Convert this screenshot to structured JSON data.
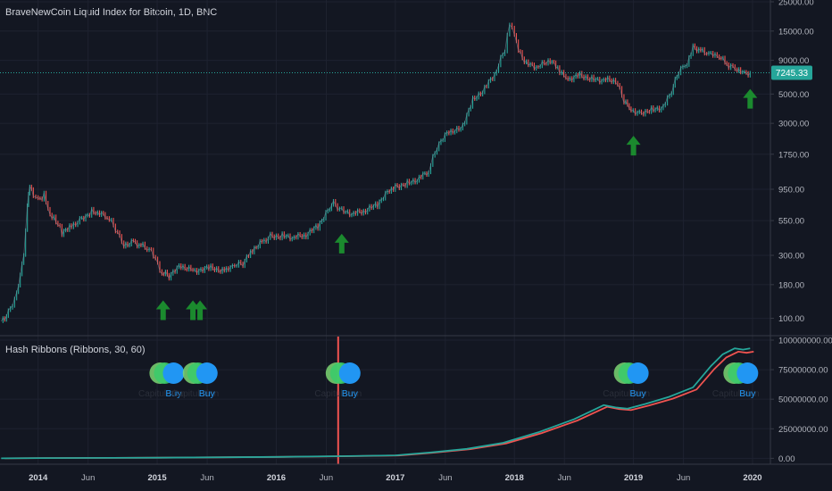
{
  "price_pane": {
    "title": "BraveNewCoin Liquid Index for Bitcoin, 1D, BNC",
    "last_price_label": "7245.33",
    "last_price": 7245.33,
    "y_ticks": [
      {
        "label": "25000.00",
        "value": 25000
      },
      {
        "label": "15000.00",
        "value": 15000
      },
      {
        "label": "9000.00",
        "value": 9000
      },
      {
        "label": "5000.00",
        "value": 5000
      },
      {
        "label": "3000.00",
        "value": 3000
      },
      {
        "label": "1750.00",
        "value": 1750
      },
      {
        "label": "950.00",
        "value": 950
      },
      {
        "label": "550.00",
        "value": 550
      },
      {
        "label": "300.00",
        "value": 300
      },
      {
        "label": "180.00",
        "value": 180
      },
      {
        "label": "100.00",
        "value": 100
      }
    ],
    "arrows": [
      {
        "t": 2015.05,
        "price": 150
      },
      {
        "t": 2015.3,
        "price": 150
      },
      {
        "t": 2015.36,
        "price": 150
      },
      {
        "t": 2016.55,
        "price": 480
      },
      {
        "t": 2019.0,
        "price": 2650
      },
      {
        "t": 2019.98,
        "price": 6000
      }
    ]
  },
  "indicator_pane": {
    "title": "Hash Ribbons (Ribbons, 30, 60)",
    "y_ticks": [
      {
        "label": "100000000.00",
        "value": 100000000
      },
      {
        "label": "75000000.00",
        "value": 75000000
      },
      {
        "label": "50000000.00",
        "value": 50000000
      },
      {
        "label": "25000000.00",
        "value": 25000000
      },
      {
        "label": "0.00",
        "value": 0
      }
    ],
    "signals": [
      {
        "t": 2015.1,
        "caption": "Capitulation",
        "label": "Buy"
      },
      {
        "t": 2015.38,
        "caption": "Capitulation",
        "label": "Buy"
      },
      {
        "t": 2016.58,
        "caption": "Capitulation",
        "label": "Buy"
      },
      {
        "t": 2019.0,
        "caption": "Capitulation",
        "label": "Buy"
      },
      {
        "t": 2019.92,
        "caption": "Capitulation",
        "label": "Buy"
      }
    ],
    "halving_t": 2016.52
  },
  "x_axis": {
    "ticks": [
      {
        "label": "2014",
        "t": 2014.0,
        "bold": true
      },
      {
        "label": "Jun",
        "t": 2014.42,
        "bold": false
      },
      {
        "label": "2015",
        "t": 2015.0,
        "bold": true
      },
      {
        "label": "Jun",
        "t": 2015.42,
        "bold": false
      },
      {
        "label": "2016",
        "t": 2016.0,
        "bold": true
      },
      {
        "label": "Jun",
        "t": 2016.42,
        "bold": false
      },
      {
        "label": "2017",
        "t": 2017.0,
        "bold": true
      },
      {
        "label": "Jun",
        "t": 2017.42,
        "bold": false
      },
      {
        "label": "2018",
        "t": 2018.0,
        "bold": true
      },
      {
        "label": "Jun",
        "t": 2018.42,
        "bold": false
      },
      {
        "label": "2019",
        "t": 2019.0,
        "bold": true
      },
      {
        "label": "Jun",
        "t": 2019.42,
        "bold": false
      },
      {
        "label": "2020",
        "t": 2020.0,
        "bold": true
      }
    ]
  },
  "chart_data": {
    "type": "line",
    "title": "BraveNewCoin Liquid Index for Bitcoin, 1D, BNC",
    "log_scale": true,
    "ylim": [
      85,
      25000
    ],
    "series": [
      {
        "name": "BraveNewCoin Liquid Index for Bitcoin",
        "x": [
          2013.69,
          2013.75,
          2013.82,
          2013.88,
          2013.91,
          2013.93,
          2013.96,
          2014.0,
          2014.05,
          2014.1,
          2014.15,
          2014.2,
          2014.28,
          2014.35,
          2014.45,
          2014.5,
          2014.58,
          2014.65,
          2014.72,
          2014.8,
          2014.88,
          2014.95,
          2015.04,
          2015.1,
          2015.2,
          2015.3,
          2015.45,
          2015.58,
          2015.65,
          2015.72,
          2015.8,
          2015.88,
          2015.95,
          2016.05,
          2016.15,
          2016.25,
          2016.35,
          2016.45,
          2016.48,
          2016.55,
          2016.65,
          2016.75,
          2016.85,
          2016.95,
          2017.0,
          2017.1,
          2017.2,
          2017.28,
          2017.35,
          2017.45,
          2017.55,
          2017.65,
          2017.75,
          2017.85,
          2017.92,
          2017.96,
          2018.0,
          2018.05,
          2018.1,
          2018.2,
          2018.3,
          2018.38,
          2018.45,
          2018.55,
          2018.65,
          2018.75,
          2018.85,
          2018.92,
          2018.98,
          2019.05,
          2019.15,
          2019.25,
          2019.32,
          2019.38,
          2019.45,
          2019.5,
          2019.58,
          2019.65,
          2019.72,
          2019.8,
          2019.87,
          2019.93,
          2019.98
        ],
        "values": [
          95,
          110,
          150,
          300,
          750,
          1050,
          850,
          780,
          850,
          600,
          550,
          450,
          500,
          560,
          640,
          620,
          590,
          480,
          360,
          380,
          350,
          320,
          220,
          210,
          250,
          230,
          240,
          230,
          250,
          260,
          330,
          380,
          420,
          420,
          410,
          425,
          500,
          680,
          750,
          650,
          620,
          650,
          730,
          930,
          1000,
          1050,
          1150,
          1300,
          2000,
          2600,
          2700,
          4500,
          5500,
          7500,
          11000,
          17500,
          14000,
          10000,
          8500,
          8000,
          9000,
          7500,
          6500,
          7000,
          6500,
          6400,
          6300,
          4500,
          3800,
          3600,
          3800,
          4000,
          5200,
          7500,
          8500,
          11500,
          10500,
          10000,
          9500,
          8200,
          7700,
          7300,
          7245
        ]
      },
      {
        "name": "Hash Ribbons",
        "x": [
          2013.69,
          2014.0,
          2015.0,
          2016.0,
          2016.52,
          2017.0,
          2017.3,
          2017.6,
          2017.9,
          2018.2,
          2018.5,
          2018.75,
          2018.85,
          2018.95,
          2019.1,
          2019.3,
          2019.5,
          2019.65,
          2019.75,
          2019.85,
          2019.92,
          2019.98
        ],
        "values": [
          0,
          200000,
          500000,
          1200000,
          1800000,
          2500000,
          5000000,
          8000000,
          13000000,
          22000000,
          33000000,
          45000000,
          43000000,
          42000000,
          46000000,
          52000000,
          60000000,
          78000000,
          88000000,
          93000000,
          92000000,
          93000000
        ]
      }
    ],
    "ind_ylim": [
      -5000000,
      103000000
    ],
    "xlim": [
      2013.68,
      2020.15
    ]
  }
}
